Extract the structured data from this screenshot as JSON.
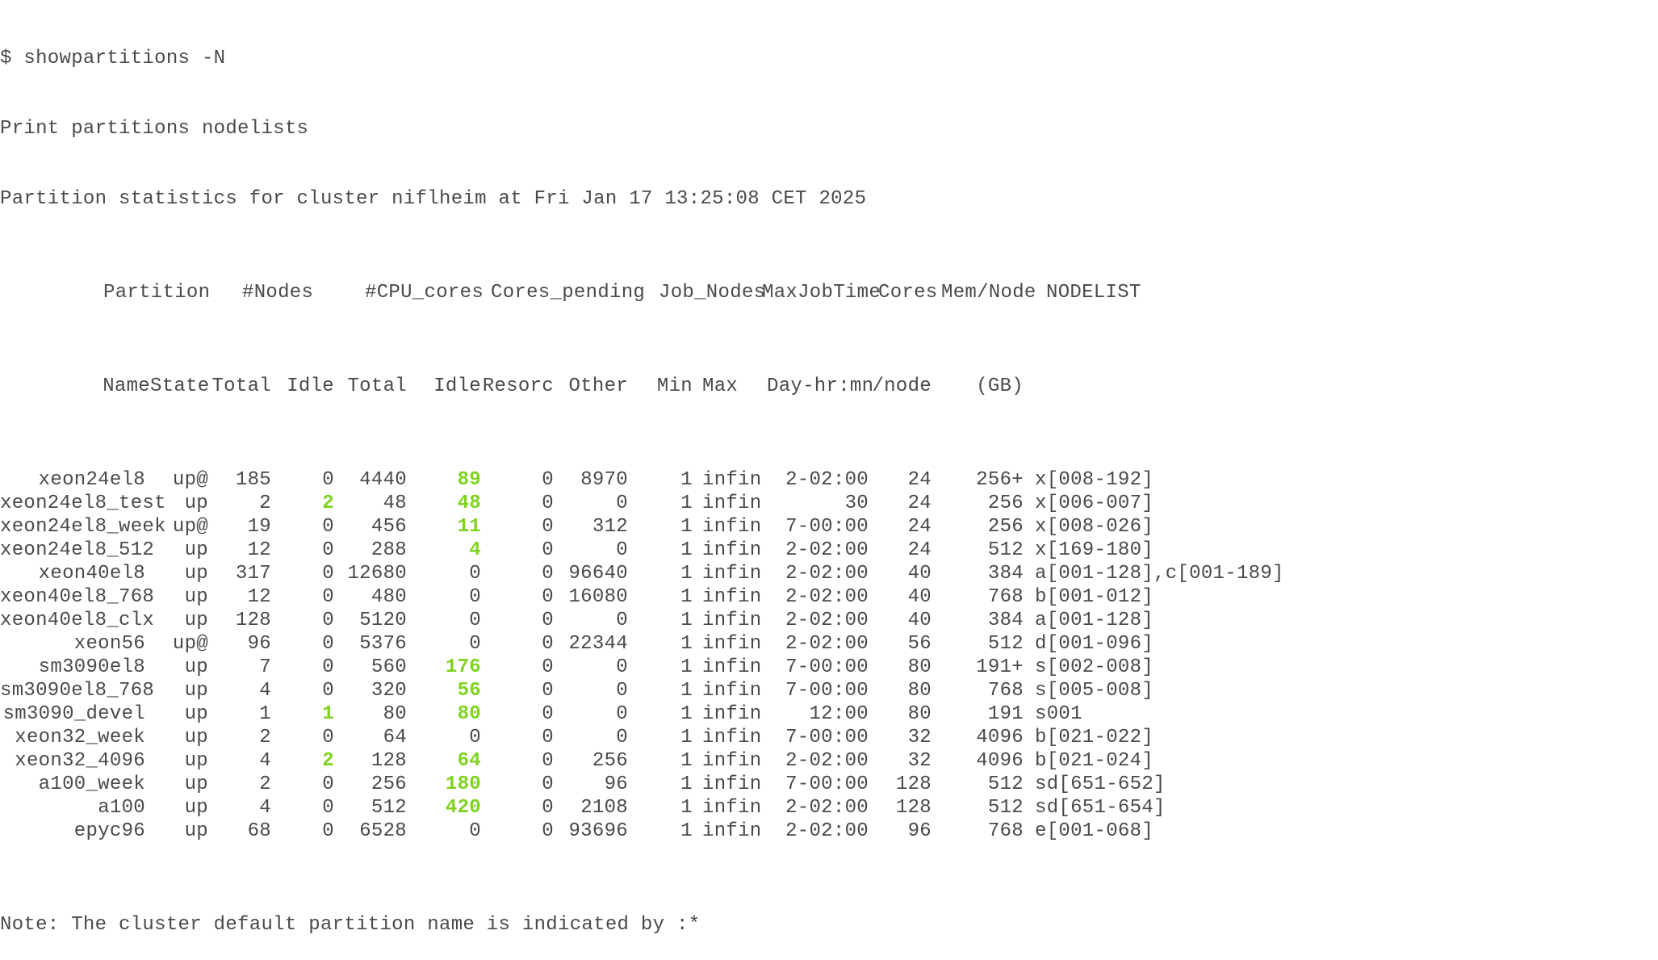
{
  "terminal": {
    "command_line": "$ showpartitions -N",
    "info_line": "Print partitions nodelists",
    "stats_line": "Partition statistics for cluster niflheim at Fri Jan 17 13:25:08 CET 2025",
    "note_line": "Note: The cluster default partition name is indicated by :*",
    "highlight_color": "#7ed321",
    "text_color": "#4a4a4a",
    "background_color": "#ffffff"
  },
  "table": {
    "header1": [
      "Partition",
      "#Nodes",
      "#CPU_cores",
      "Cores_pending",
      "Job_Nodes",
      "MaxJobTime",
      "Cores",
      "Mem/Node",
      "NODELIST"
    ],
    "header2": [
      "Name",
      "State",
      "Total",
      "Idle",
      "Total",
      "Idle",
      "Resorc",
      "Other",
      "Min",
      "Max",
      "Day-hr:mn",
      "/node",
      "(GB)"
    ],
    "rows": [
      {
        "name": "xeon24el8",
        "state": "up@",
        "nodes_total": "185",
        "nodes_idle": "0",
        "cores_total": "4440",
        "cores_idle": "89",
        "resorc": "0",
        "other": "8970",
        "min": "1",
        "max": "infin",
        "maxtime": "2-02:00",
        "cores_node": "24",
        "mem": "256+",
        "nodelist": "x[008-192]",
        "hl_nodes_idle": false,
        "hl_cores_idle": true
      },
      {
        "name": "xeon24el8_test",
        "state": "up",
        "nodes_total": "2",
        "nodes_idle": "2",
        "cores_total": "48",
        "cores_idle": "48",
        "resorc": "0",
        "other": "0",
        "min": "1",
        "max": "infin",
        "maxtime": "30",
        "cores_node": "24",
        "mem": "256",
        "nodelist": "x[006-007]",
        "hl_nodes_idle": true,
        "hl_cores_idle": true
      },
      {
        "name": "xeon24el8_week",
        "state": "up@",
        "nodes_total": "19",
        "nodes_idle": "0",
        "cores_total": "456",
        "cores_idle": "11",
        "resorc": "0",
        "other": "312",
        "min": "1",
        "max": "infin",
        "maxtime": "7-00:00",
        "cores_node": "24",
        "mem": "256",
        "nodelist": "x[008-026]",
        "hl_nodes_idle": false,
        "hl_cores_idle": true
      },
      {
        "name": "xeon24el8_512",
        "state": "up",
        "nodes_total": "12",
        "nodes_idle": "0",
        "cores_total": "288",
        "cores_idle": "4",
        "resorc": "0",
        "other": "0",
        "min": "1",
        "max": "infin",
        "maxtime": "2-02:00",
        "cores_node": "24",
        "mem": "512",
        "nodelist": "x[169-180]",
        "hl_nodes_idle": false,
        "hl_cores_idle": true
      },
      {
        "name": "xeon40el8",
        "state": "up",
        "nodes_total": "317",
        "nodes_idle": "0",
        "cores_total": "12680",
        "cores_idle": "0",
        "resorc": "0",
        "other": "96640",
        "min": "1",
        "max": "infin",
        "maxtime": "2-02:00",
        "cores_node": "40",
        "mem": "384",
        "nodelist": "a[001-128],c[001-189]",
        "hl_nodes_idle": false,
        "hl_cores_idle": false
      },
      {
        "name": "xeon40el8_768",
        "state": "up",
        "nodes_total": "12",
        "nodes_idle": "0",
        "cores_total": "480",
        "cores_idle": "0",
        "resorc": "0",
        "other": "16080",
        "min": "1",
        "max": "infin",
        "maxtime": "2-02:00",
        "cores_node": "40",
        "mem": "768",
        "nodelist": "b[001-012]",
        "hl_nodes_idle": false,
        "hl_cores_idle": false
      },
      {
        "name": "xeon40el8_clx",
        "state": "up",
        "nodes_total": "128",
        "nodes_idle": "0",
        "cores_total": "5120",
        "cores_idle": "0",
        "resorc": "0",
        "other": "0",
        "min": "1",
        "max": "infin",
        "maxtime": "2-02:00",
        "cores_node": "40",
        "mem": "384",
        "nodelist": "a[001-128]",
        "hl_nodes_idle": false,
        "hl_cores_idle": false
      },
      {
        "name": "xeon56",
        "state": "up@",
        "nodes_total": "96",
        "nodes_idle": "0",
        "cores_total": "5376",
        "cores_idle": "0",
        "resorc": "0",
        "other": "22344",
        "min": "1",
        "max": "infin",
        "maxtime": "2-02:00",
        "cores_node": "56",
        "mem": "512",
        "nodelist": "d[001-096]",
        "hl_nodes_idle": false,
        "hl_cores_idle": false
      },
      {
        "name": "sm3090el8",
        "state": "up",
        "nodes_total": "7",
        "nodes_idle": "0",
        "cores_total": "560",
        "cores_idle": "176",
        "resorc": "0",
        "other": "0",
        "min": "1",
        "max": "infin",
        "maxtime": "7-00:00",
        "cores_node": "80",
        "mem": "191+",
        "nodelist": "s[002-008]",
        "hl_nodes_idle": false,
        "hl_cores_idle": true
      },
      {
        "name": "sm3090el8_768",
        "state": "up",
        "nodes_total": "4",
        "nodes_idle": "0",
        "cores_total": "320",
        "cores_idle": "56",
        "resorc": "0",
        "other": "0",
        "min": "1",
        "max": "infin",
        "maxtime": "7-00:00",
        "cores_node": "80",
        "mem": "768",
        "nodelist": "s[005-008]",
        "hl_nodes_idle": false,
        "hl_cores_idle": true
      },
      {
        "name": "sm3090_devel",
        "state": "up",
        "nodes_total": "1",
        "nodes_idle": "1",
        "cores_total": "80",
        "cores_idle": "80",
        "resorc": "0",
        "other": "0",
        "min": "1",
        "max": "infin",
        "maxtime": "12:00",
        "cores_node": "80",
        "mem": "191",
        "nodelist": "s001",
        "hl_nodes_idle": true,
        "hl_cores_idle": true
      },
      {
        "name": "xeon32_week",
        "state": "up",
        "nodes_total": "2",
        "nodes_idle": "0",
        "cores_total": "64",
        "cores_idle": "0",
        "resorc": "0",
        "other": "0",
        "min": "1",
        "max": "infin",
        "maxtime": "7-00:00",
        "cores_node": "32",
        "mem": "4096",
        "nodelist": "b[021-022]",
        "hl_nodes_idle": false,
        "hl_cores_idle": false
      },
      {
        "name": "xeon32_4096",
        "state": "up",
        "nodes_total": "4",
        "nodes_idle": "2",
        "cores_total": "128",
        "cores_idle": "64",
        "resorc": "0",
        "other": "256",
        "min": "1",
        "max": "infin",
        "maxtime": "2-02:00",
        "cores_node": "32",
        "mem": "4096",
        "nodelist": "b[021-024]",
        "hl_nodes_idle": true,
        "hl_cores_idle": true
      },
      {
        "name": "a100_week",
        "state": "up",
        "nodes_total": "2",
        "nodes_idle": "0",
        "cores_total": "256",
        "cores_idle": "180",
        "resorc": "0",
        "other": "96",
        "min": "1",
        "max": "infin",
        "maxtime": "7-00:00",
        "cores_node": "128",
        "mem": "512",
        "nodelist": "sd[651-652]",
        "hl_nodes_idle": false,
        "hl_cores_idle": true
      },
      {
        "name": "a100",
        "state": "up",
        "nodes_total": "4",
        "nodes_idle": "0",
        "cores_total": "512",
        "cores_idle": "420",
        "resorc": "0",
        "other": "2108",
        "min": "1",
        "max": "infin",
        "maxtime": "2-02:00",
        "cores_node": "128",
        "mem": "512",
        "nodelist": "sd[651-654]",
        "hl_nodes_idle": false,
        "hl_cores_idle": true
      },
      {
        "name": "epyc96",
        "state": "up",
        "nodes_total": "68",
        "nodes_idle": "0",
        "cores_total": "6528",
        "cores_idle": "0",
        "resorc": "0",
        "other": "93696",
        "min": "1",
        "max": "infin",
        "maxtime": "2-02:00",
        "cores_node": "96",
        "mem": "768",
        "nodelist": "e[001-068]",
        "hl_nodes_idle": false,
        "hl_cores_idle": false
      }
    ]
  }
}
